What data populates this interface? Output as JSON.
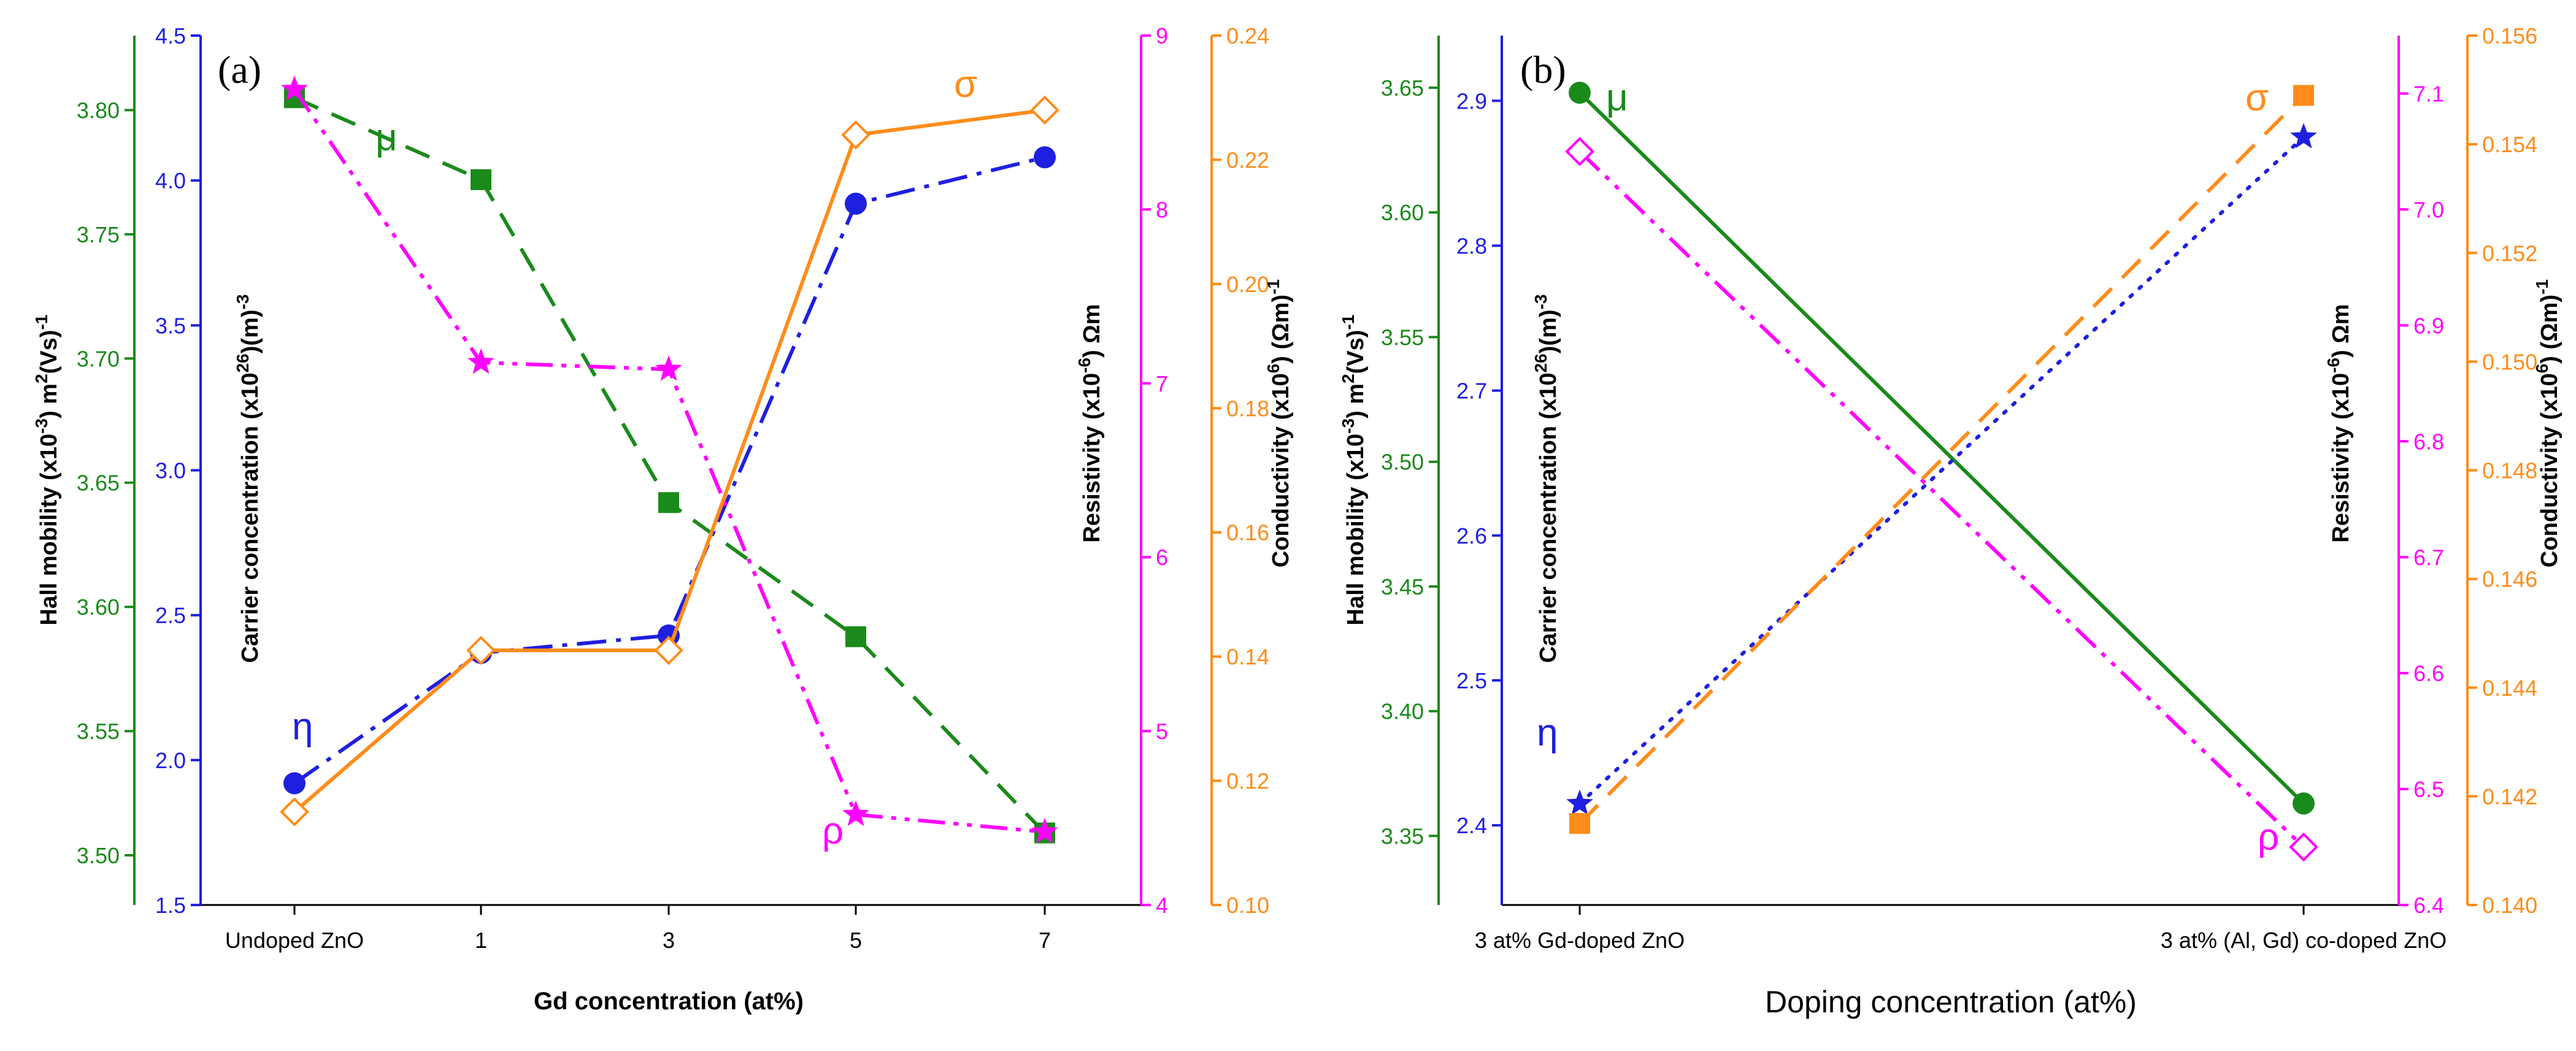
{
  "colors": {
    "green": "#1a8a1a",
    "blue": "#1f1fe0",
    "magenta": "#ff00ff",
    "orange": "#ff8c1a",
    "axis": "#000000"
  },
  "chart_data": [
    {
      "type": "line",
      "panel_label": "(a)",
      "xlabel": "Gd concentration (at%)",
      "categories": [
        "Undoped ZnO",
        "1",
        "3",
        "5",
        "7"
      ],
      "axes": [
        {
          "id": "mu",
          "label": "Hall mobility (x10",
          "label_exp": "-3",
          "label_mid": ") m",
          "label_exp2": "2",
          "label_end": "(Vs)",
          "label_exp3": "-1",
          "range": [
            3.48,
            3.83
          ],
          "ticks": [
            "3.50",
            "3.55",
            "3.60",
            "3.65",
            "3.70",
            "3.75",
            "3.80"
          ],
          "tick_values": [
            3.5,
            3.55,
            3.6,
            3.65,
            3.7,
            3.75,
            3.8
          ]
        },
        {
          "id": "eta",
          "label": "Carrier concentration (x10",
          "label_exp": "26",
          "label_end": ")(m)",
          "label_exp2": "-3",
          "range": [
            1.5,
            4.5
          ],
          "ticks": [
            "1.5",
            "2.0",
            "2.5",
            "3.0",
            "3.5",
            "4.0",
            "4.5"
          ],
          "tick_values": [
            1.5,
            2.0,
            2.5,
            3.0,
            3.5,
            4.0,
            4.5
          ]
        },
        {
          "id": "rho",
          "label": "Resistivity (x10",
          "label_exp": "-6",
          "label_end": ") Ωm",
          "range": [
            4,
            9
          ],
          "ticks": [
            "4",
            "5",
            "6",
            "7",
            "8",
            "9"
          ],
          "tick_values": [
            4,
            5,
            6,
            7,
            8,
            9
          ]
        },
        {
          "id": "sigma",
          "label": "Conductivity (x10",
          "label_exp": "6",
          "label_end": ") (Ωm)",
          "label_exp2": "-1",
          "range": [
            0.1,
            0.24
          ],
          "ticks": [
            "0.10",
            "0.12",
            "0.14",
            "0.16",
            "0.18",
            "0.20",
            "0.22",
            "0.24"
          ],
          "tick_values": [
            0.1,
            0.12,
            0.14,
            0.16,
            0.18,
            0.2,
            0.22,
            0.24
          ]
        }
      ],
      "series": [
        {
          "name": "μ",
          "axis": "mu",
          "color": "#1a8a1a",
          "style": "dashed",
          "marker": "square",
          "values": [
            3.805,
            3.772,
            3.642,
            3.588,
            3.509
          ]
        },
        {
          "name": "η",
          "axis": "eta",
          "color": "#1f1fe0",
          "style": "dashdot",
          "marker": "circle",
          "values": [
            1.92,
            2.37,
            2.43,
            3.92,
            4.08
          ]
        },
        {
          "name": "ρ",
          "axis": "rho",
          "color": "#ff00ff",
          "style": "dashdotdot",
          "marker": "star",
          "values": [
            8.69,
            7.12,
            7.08,
            4.52,
            4.42
          ]
        },
        {
          "name": "σ",
          "axis": "sigma",
          "color": "#ff8c1a",
          "style": "solid",
          "marker": "diamond-open",
          "values": [
            0.115,
            0.141,
            0.141,
            0.224,
            0.228
          ]
        }
      ]
    },
    {
      "type": "line",
      "panel_label": "(b)",
      "xlabel": "Doping concentration (at%)",
      "categories": [
        "3 at% Gd-doped ZnO",
        "3 at% (Al, Gd) co-doped ZnO"
      ],
      "axes": [
        {
          "id": "mu",
          "label": "Hall mobility (x10",
          "label_exp": "-3",
          "label_mid": ") m",
          "label_exp2": "2",
          "label_end": "(Vs)",
          "label_exp3": "-1",
          "range": [
            3.3223,
            3.6709
          ],
          "ticks": [
            "3.35",
            "3.40",
            "3.45",
            "3.50",
            "3.55",
            "3.60",
            "3.65"
          ],
          "tick_values": [
            3.35,
            3.4,
            3.45,
            3.5,
            3.55,
            3.6,
            3.65
          ]
        },
        {
          "id": "eta",
          "label": "Carrier concentration (x10",
          "label_exp": "26",
          "label_end": ")(m)",
          "label_exp2": "-3",
          "range": [
            2.345,
            2.945
          ],
          "ticks": [
            "2.4",
            "2.5",
            "2.6",
            "2.7",
            "2.8",
            "2.9"
          ],
          "tick_values": [
            2.4,
            2.5,
            2.6,
            2.7,
            2.8,
            2.9
          ]
        },
        {
          "id": "rho",
          "label": "Resistivity (x10",
          "label_exp": "-6",
          "label_end": ") Ωm",
          "range": [
            6.4,
            7.15
          ],
          "ticks": [
            "6.4",
            "6.5",
            "6.6",
            "6.7",
            "6.8",
            "6.9",
            "7.0",
            "7.1"
          ],
          "tick_values": [
            6.4,
            6.5,
            6.6,
            6.7,
            6.8,
            6.9,
            7.0,
            7.1
          ]
        },
        {
          "id": "sigma",
          "label": "Conductivity (x10",
          "label_exp": "6",
          "label_end": ") (Ωm)",
          "label_exp2": "-1",
          "range": [
            0.14,
            0.156
          ],
          "ticks": [
            "0.140",
            "0.142",
            "0.144",
            "0.146",
            "0.148",
            "0.150",
            "0.152",
            "0.154",
            "0.156"
          ],
          "tick_values": [
            0.14,
            0.142,
            0.144,
            0.146,
            0.148,
            0.15,
            0.152,
            0.154,
            0.156
          ]
        }
      ],
      "series": [
        {
          "name": "μ",
          "axis": "mu",
          "color": "#1a8a1a",
          "style": "solid",
          "marker": "circle",
          "values": [
            3.648,
            3.363
          ]
        },
        {
          "name": "η",
          "axis": "eta",
          "color": "#1f1fe0",
          "style": "dotted",
          "marker": "star",
          "values": [
            2.415,
            2.875
          ]
        },
        {
          "name": "ρ",
          "axis": "rho",
          "color": "#ff00ff",
          "style": "dashdotdot",
          "marker": "diamond-open",
          "values": [
            7.05,
            6.45
          ]
        },
        {
          "name": "σ",
          "axis": "sigma",
          "color": "#ff8c1a",
          "style": "dashed",
          "marker": "square",
          "values": [
            0.1415,
            0.1549
          ]
        }
      ]
    }
  ]
}
